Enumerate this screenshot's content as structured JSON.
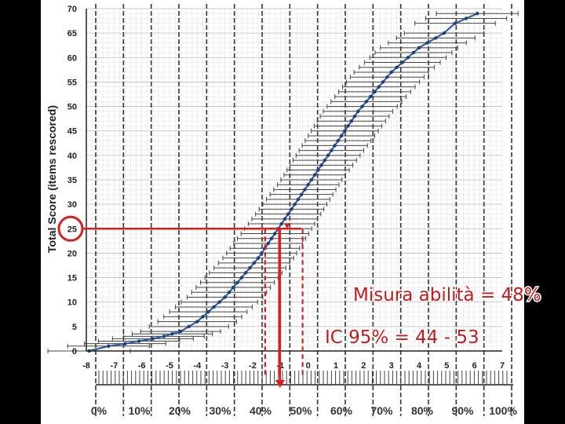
{
  "chart_data": {
    "type": "scatter",
    "ylabel": "Total Score (items rescored)",
    "xlim": [
      -8,
      7
    ],
    "ylim": [
      0,
      70
    ],
    "x_ticks": [
      -8,
      -7,
      -6,
      -5,
      -4,
      -3,
      -2,
      -1,
      0,
      1,
      2,
      3,
      4,
      5,
      6,
      7
    ],
    "y_ticks": [
      0,
      5,
      10,
      15,
      20,
      25,
      30,
      35,
      40,
      45,
      50,
      55,
      60,
      65,
      70
    ],
    "percent_ticks": [
      "0%",
      "10%",
      "20%",
      "30%",
      "40%",
      "50%",
      "60%",
      "70%",
      "80%",
      "90%",
      "100%"
    ],
    "grid": true,
    "series": [
      {
        "x": [
          -7.9,
          -7.2,
          -6.6,
          -6.1,
          -5.6,
          -5.2,
          -4.9,
          -4.6,
          -4.3,
          -4.0,
          -3.8,
          -3.6,
          -3.4,
          -3.2,
          -3.0,
          -2.85,
          -2.7,
          -2.55,
          -2.4,
          -2.25,
          -2.1,
          -1.95,
          -1.8,
          -1.68,
          -1.56,
          -1.44,
          -1.32,
          -1.2,
          -1.08,
          -0.96,
          -0.84,
          -0.72,
          -0.6,
          -0.48,
          -0.36,
          -0.24,
          -0.12,
          0.0,
          0.12,
          0.24,
          0.36,
          0.48,
          0.6,
          0.72,
          0.84,
          0.96,
          1.08,
          1.2,
          1.32,
          1.44,
          1.56,
          1.68,
          1.8,
          1.95,
          2.1,
          2.25,
          2.4,
          2.55,
          2.7,
          2.85,
          3.0,
          3.2,
          3.4,
          3.6,
          3.8,
          4.0,
          4.3,
          4.6,
          4.9,
          5.3,
          5.7,
          6.1
        ],
        "y": [
          0,
          1,
          1.5,
          2,
          2.5,
          3,
          3.5,
          4,
          5,
          6,
          7,
          8,
          9,
          10,
          11,
          12,
          13,
          14,
          15,
          16,
          17,
          18,
          19,
          20,
          21,
          22,
          23,
          24,
          25,
          26,
          27,
          28,
          29,
          30,
          31,
          32,
          33,
          34,
          35,
          36,
          37,
          38,
          39,
          40,
          41,
          42,
          43,
          44,
          45,
          46,
          47,
          48,
          49,
          50,
          51,
          52,
          53,
          54,
          55,
          56,
          57,
          58,
          59,
          60,
          61,
          62,
          63,
          64,
          65,
          67,
          68,
          69
        ]
      }
    ],
    "error_half_width": 1.1,
    "reference_lines": {
      "score": 25,
      "ability": -0.9,
      "ci_low": -1.55,
      "ci_high": -0.2,
      "ci_mid": -1.05
    }
  },
  "annotations": {
    "measure": "Misura abilità = 48%",
    "ci": "IC 95% = 44 - 53"
  }
}
